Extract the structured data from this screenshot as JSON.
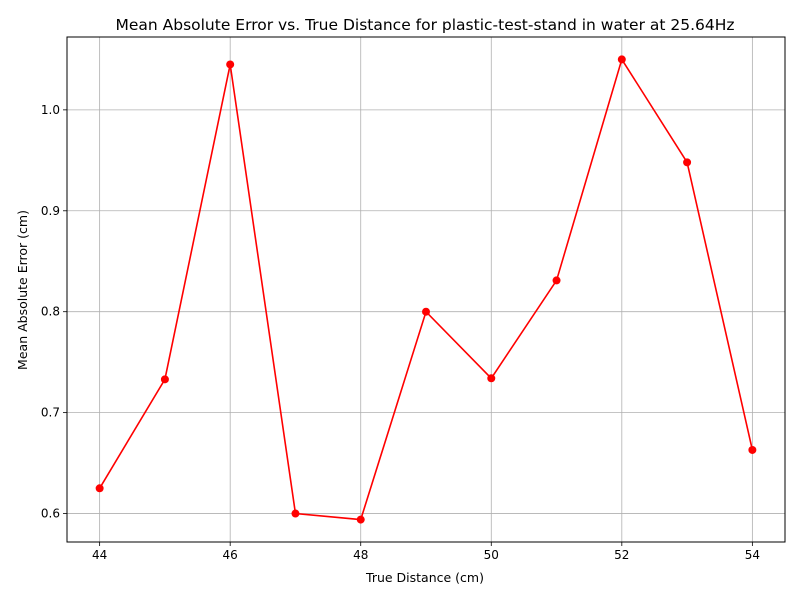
{
  "chart_data": {
    "type": "line",
    "title": "Mean Absolute Error vs. True Distance for plastic-test-stand in water at 25.64Hz",
    "xlabel": "True Distance (cm)",
    "ylabel": "Mean Absolute Error (cm)",
    "x": [
      44,
      45,
      46,
      47,
      48,
      49,
      50,
      51,
      52,
      53,
      54
    ],
    "series": [
      {
        "values": [
          0.625,
          0.733,
          1.045,
          0.6,
          0.594,
          0.8,
          0.734,
          0.831,
          1.05,
          0.948,
          0.663
        ],
        "color": "#ff0000",
        "marker": "circle"
      }
    ],
    "xticks": [
      44,
      46,
      48,
      50,
      52,
      54
    ],
    "yticks": [
      0.6,
      0.7,
      0.8,
      0.9,
      1.0
    ],
    "xtick_labels": [
      "44",
      "46",
      "48",
      "50",
      "52",
      "54"
    ],
    "ytick_labels": [
      "0.6",
      "0.7",
      "0.8",
      "0.9",
      "1.0"
    ],
    "xlim": [
      43.5,
      54.5
    ],
    "ylim": [
      0.5718,
      1.0722
    ],
    "grid": true,
    "grid_color": "#b0b0b0"
  }
}
